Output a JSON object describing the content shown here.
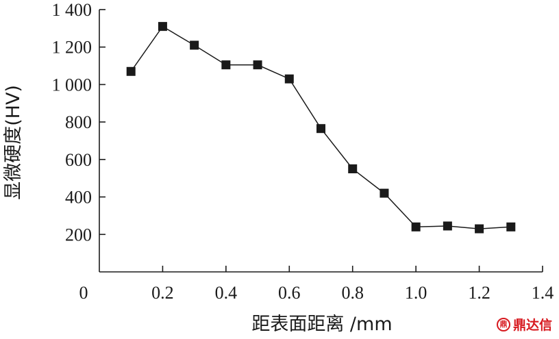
{
  "chart_data": {
    "type": "line",
    "title": "",
    "xlabel": "距表面距离 /mm",
    "ylabel": "显微硬度(HV)",
    "xlim": [
      0,
      1.4
    ],
    "ylim": [
      0,
      1400
    ],
    "x_ticks": [
      "0",
      "0.2",
      "0.4",
      "0.6",
      "0.8",
      "1.0",
      "1.2",
      "1.4"
    ],
    "y_ticks": [
      "200",
      "400",
      "600",
      "800",
      "1 000",
      "1 200",
      "1 400"
    ],
    "grid": false,
    "marker": "square",
    "series": [
      {
        "x": [
          0.1,
          0.2,
          0.3,
          0.4,
          0.5,
          0.6,
          0.7,
          0.8,
          0.9,
          1.0,
          1.1,
          1.2,
          1.3
        ],
        "y": [
          1070,
          1310,
          1210,
          1105,
          1105,
          1030,
          765,
          550,
          420,
          240,
          245,
          230,
          240
        ]
      }
    ]
  },
  "watermark": {
    "text": "鼎达信",
    "logo_glyph": "鼎",
    "color": "#d7191f"
  }
}
